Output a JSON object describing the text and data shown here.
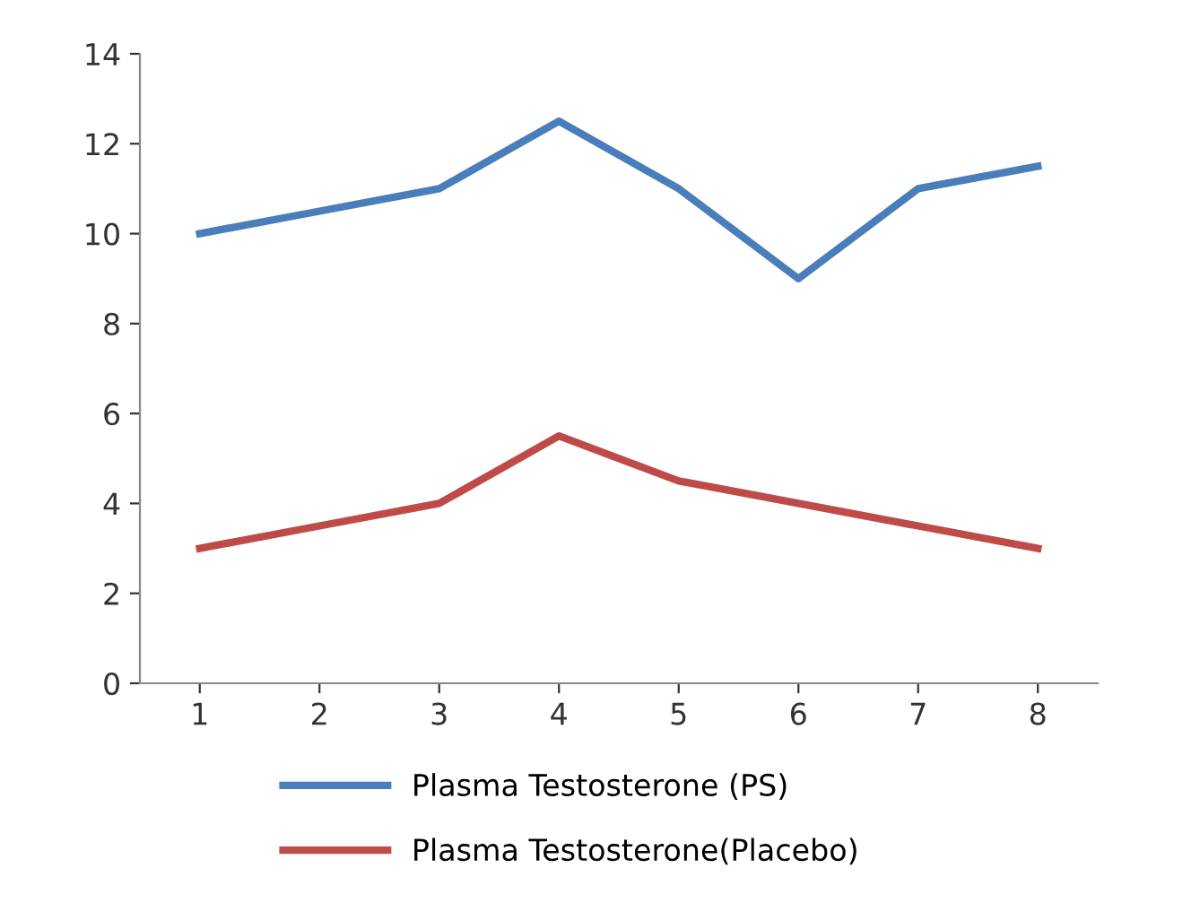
{
  "chart_data": {
    "type": "line",
    "categories": [
      "1",
      "2",
      "3",
      "4",
      "5",
      "6",
      "7",
      "8"
    ],
    "series": [
      {
        "name": "Plasma Testosterone (PS)",
        "color": "#4a7ebb",
        "values": [
          10,
          10.5,
          11,
          12.5,
          11,
          9,
          11,
          11.5
        ]
      },
      {
        "name": "Plasma Testosterone(Placebo)",
        "color": "#be4b48",
        "values": [
          3,
          3.5,
          4,
          5.5,
          4.5,
          4,
          3.5,
          3
        ]
      }
    ],
    "ylim": [
      0,
      14
    ],
    "yticks": [
      0,
      2,
      4,
      6,
      8,
      10,
      12,
      14
    ],
    "grid": false,
    "legend": "bottom",
    "marker": "none",
    "line_style": "solid"
  }
}
